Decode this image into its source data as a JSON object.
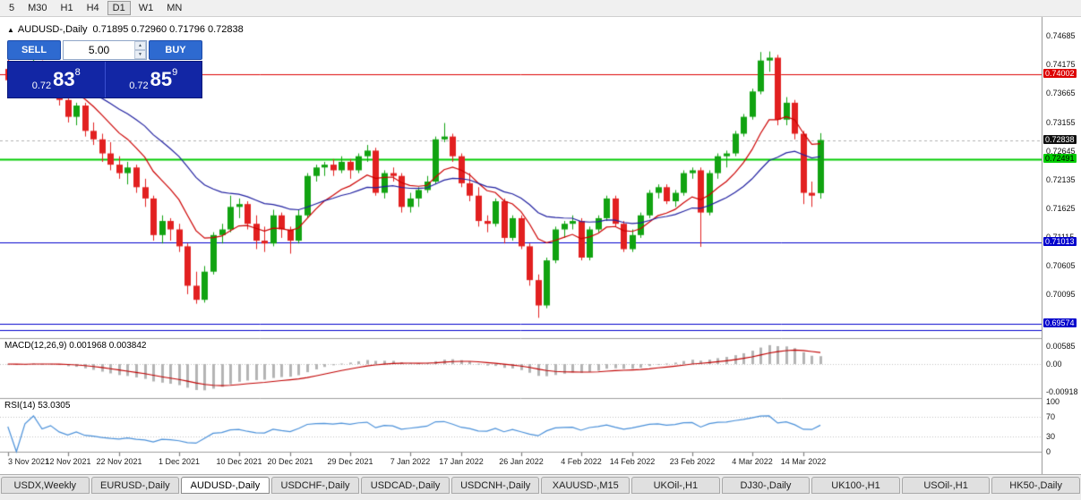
{
  "toolbar": {
    "timeframes": [
      {
        "label": "5",
        "active": false
      },
      {
        "label": "M30",
        "active": false
      },
      {
        "label": "H1",
        "active": false
      },
      {
        "label": "H4",
        "active": false
      },
      {
        "label": "D1",
        "active": true
      },
      {
        "label": "W1",
        "active": false
      },
      {
        "label": "MN",
        "active": false
      }
    ]
  },
  "chart_header": {
    "collapse_icon": "▲",
    "symbol": "AUDUSD-,Daily",
    "ohlc": "0.71895 0.72960 0.71796 0.72838"
  },
  "trade": {
    "sell_label": "SELL",
    "buy_label": "BUY",
    "volume": "5.00",
    "up_arrow": "▲",
    "down_arrow": "▼",
    "sell_price": {
      "prefix": "0.72",
      "big": "83",
      "sup": "8",
      "value": "0.72838"
    },
    "buy_price": {
      "prefix": "0.72",
      "big": "85",
      "sup": "9",
      "value": "0.72859"
    }
  },
  "chart_data": [
    {
      "name": "main",
      "type": "candlestick",
      "symbol": "AUDUSD-,Daily",
      "ohlc_display": {
        "open": "0.71895",
        "high": "0.72960",
        "low": "0.71796",
        "close": "0.72838"
      },
      "colors": {
        "up": "#11a311",
        "down": "#e22020"
      },
      "y_axis": {
        "visible_range": [
          0.6932,
          0.7488
        ],
        "ticks": [
          "0.74685",
          "0.74175",
          "0.73665",
          "0.73155",
          "0.72645",
          "0.72135",
          "0.71625",
          "0.71115",
          "0.70605",
          "0.70095"
        ]
      },
      "current_price": {
        "value": 0.72838,
        "label": "0.72838"
      },
      "horizontal_lines": [
        {
          "price": 0.74002,
          "color": "#dd0000",
          "label": "0.74002",
          "label_text_color": "#fff",
          "width": 1
        },
        {
          "price": 0.72491,
          "color": "#00cc00",
          "label": "0.72491",
          "label_text_color": "#000",
          "width": 2
        },
        {
          "price": 0.71013,
          "color": "#0000cc",
          "label": "0.71013",
          "label_text_color": "#fff",
          "width": 1
        },
        {
          "price": 0.69574,
          "color": "#0000cc",
          "label": "0.69574",
          "label_text_color": "#fff",
          "width": 1
        },
        {
          "price": 0.6946,
          "color": "#0000cc",
          "label": null,
          "width": 1
        }
      ],
      "moving_averages": [
        {
          "type": "ema",
          "period": 10,
          "color": "#cc0000"
        },
        {
          "type": "ema",
          "period": 24,
          "color": "#2020a0"
        }
      ],
      "x_axis_labels": [
        {
          "text": "3 Nov 2021",
          "candle_index": 0
        },
        {
          "text": "12 Nov 2021",
          "candle_index": 7
        },
        {
          "text": "22 Nov 2021",
          "candle_index": 13
        },
        {
          "text": "1 Dec 2021",
          "candle_index": 20
        },
        {
          "text": "10 Dec 2021",
          "candle_index": 27
        },
        {
          "text": "20 Dec 2021",
          "candle_index": 33
        },
        {
          "text": "29 Dec 2021",
          "candle_index": 40
        },
        {
          "text": "7 Jan 2022",
          "candle_index": 47
        },
        {
          "text": "17 Jan 2022",
          "candle_index": 53
        },
        {
          "text": "26 Jan 2022",
          "candle_index": 60
        },
        {
          "text": "4 Feb 2022",
          "candle_index": 67
        },
        {
          "text": "14 Feb 2022",
          "candle_index": 73
        },
        {
          "text": "23 Feb 2022",
          "candle_index": 80
        },
        {
          "text": "4 Mar 2022",
          "candle_index": 87
        },
        {
          "text": "14 Mar 2022",
          "candle_index": 93
        }
      ],
      "dates": [
        "3 Nov 2021",
        "4 Nov 2021",
        "5 Nov 2021",
        "8 Nov 2021",
        "9 Nov 2021",
        "10 Nov 2021",
        "11 Nov 2021",
        "12 Nov 2021",
        "15 Nov 2021",
        "16 Nov 2021",
        "17 Nov 2021",
        "18 Nov 2021",
        "19 Nov 2021",
        "22 Nov 2021",
        "23 Nov 2021",
        "24 Nov 2021",
        "25 Nov 2021",
        "26 Nov 2021",
        "29 Nov 2021",
        "30 Nov 2021",
        "1 Dec 2021",
        "2 Dec 2021",
        "3 Dec 2021",
        "6 Dec 2021",
        "7 Dec 2021",
        "8 Dec 2021",
        "9 Dec 2021",
        "10 Dec 2021",
        "13 Dec 2021",
        "14 Dec 2021",
        "15 Dec 2021",
        "16 Dec 2021",
        "17 Dec 2021",
        "20 Dec 2021",
        "21 Dec 2021",
        "22 Dec 2021",
        "23 Dec 2021",
        "24 Dec 2021",
        "27 Dec 2021",
        "28 Dec 2021",
        "29 Dec 2021",
        "30 Dec 2021",
        "31 Dec 2021",
        "3 Jan 2022",
        "4 Jan 2022",
        "5 Jan 2022",
        "6 Jan 2022",
        "7 Jan 2022",
        "10 Jan 2022",
        "11 Jan 2022",
        "12 Jan 2022",
        "13 Jan 2022",
        "14 Jan 2022",
        "17 Jan 2022",
        "18 Jan 2022",
        "19 Jan 2022",
        "20 Jan 2022",
        "21 Jan 2022",
        "24 Jan 2022",
        "25 Jan 2022",
        "26 Jan 2022",
        "27 Jan 2022",
        "28 Jan 2022",
        "31 Jan 2022",
        "1 Feb 2022",
        "2 Feb 2022",
        "3 Feb 2022",
        "4 Feb 2022",
        "7 Feb 2022",
        "8 Feb 2022",
        "9 Feb 2022",
        "10 Feb 2022",
        "11 Feb 2022",
        "14 Feb 2022",
        "15 Feb 2022",
        "16 Feb 2022",
        "17 Feb 2022",
        "18 Feb 2022",
        "21 Feb 2022",
        "22 Feb 2022",
        "23 Feb 2022",
        "24 Feb 2022",
        "25 Feb 2022",
        "28 Feb 2022",
        "1 Mar 2022",
        "2 Mar 2022",
        "3 Mar 2022",
        "4 Mar 2022",
        "7 Mar 2022",
        "8 Mar 2022",
        "9 Mar 2022",
        "10 Mar 2022",
        "11 Mar 2022",
        "14 Mar 2022",
        "15 Mar 2022",
        "16 Mar 2022"
      ],
      "candles": [
        [
          0.741,
          0.743,
          0.738,
          0.739
        ],
        [
          0.739,
          0.7405,
          0.736,
          0.737
        ],
        [
          0.737,
          0.74,
          0.7365,
          0.7395
        ],
        [
          0.7395,
          0.7428,
          0.7385,
          0.742
        ],
        [
          0.742,
          0.7425,
          0.737,
          0.738
        ],
        [
          0.738,
          0.74,
          0.736,
          0.7395
        ],
        [
          0.7395,
          0.74,
          0.7345,
          0.7355
        ],
        [
          0.7355,
          0.7365,
          0.7315,
          0.7325
        ],
        [
          0.7325,
          0.735,
          0.731,
          0.7345
        ],
        [
          0.7345,
          0.735,
          0.729,
          0.73
        ],
        [
          0.73,
          0.7315,
          0.7275,
          0.7285
        ],
        [
          0.7285,
          0.7295,
          0.7245,
          0.726
        ],
        [
          0.726,
          0.728,
          0.723,
          0.724
        ],
        [
          0.724,
          0.7255,
          0.7215,
          0.7225
        ],
        [
          0.7225,
          0.7245,
          0.7205,
          0.7235
        ],
        [
          0.7235,
          0.724,
          0.719,
          0.72
        ],
        [
          0.72,
          0.7215,
          0.7165,
          0.718
        ],
        [
          0.718,
          0.7185,
          0.7105,
          0.7115
        ],
        [
          0.7115,
          0.715,
          0.71,
          0.714
        ],
        [
          0.714,
          0.7145,
          0.7105,
          0.7125
        ],
        [
          0.7125,
          0.7135,
          0.7085,
          0.7095
        ],
        [
          0.7095,
          0.71,
          0.701,
          0.7025
        ],
        [
          0.7025,
          0.705,
          0.6993,
          0.7
        ],
        [
          0.7,
          0.706,
          0.6995,
          0.705
        ],
        [
          0.705,
          0.712,
          0.7045,
          0.7115
        ],
        [
          0.7115,
          0.7135,
          0.71,
          0.7125
        ],
        [
          0.7125,
          0.7185,
          0.712,
          0.7165
        ],
        [
          0.7165,
          0.718,
          0.7145,
          0.717
        ],
        [
          0.717,
          0.7175,
          0.7125,
          0.7135
        ],
        [
          0.7135,
          0.715,
          0.709,
          0.7105
        ],
        [
          0.7105,
          0.713,
          0.7085,
          0.71
        ],
        [
          0.71,
          0.716,
          0.7095,
          0.715
        ],
        [
          0.715,
          0.7155,
          0.711,
          0.7125
        ],
        [
          0.7125,
          0.713,
          0.7082,
          0.7105
        ],
        [
          0.7105,
          0.716,
          0.71,
          0.715
        ],
        [
          0.715,
          0.7225,
          0.7145,
          0.722
        ],
        [
          0.722,
          0.724,
          0.721,
          0.7235
        ],
        [
          0.7235,
          0.7245,
          0.722,
          0.724
        ],
        [
          0.724,
          0.725,
          0.722,
          0.723
        ],
        [
          0.723,
          0.7255,
          0.7225,
          0.7245
        ],
        [
          0.7245,
          0.725,
          0.7215,
          0.723
        ],
        [
          0.723,
          0.726,
          0.7225,
          0.7255
        ],
        [
          0.7255,
          0.7275,
          0.7245,
          0.7265
        ],
        [
          0.7265,
          0.727,
          0.7185,
          0.719
        ],
        [
          0.719,
          0.723,
          0.718,
          0.7225
        ],
        [
          0.7225,
          0.7235,
          0.721,
          0.722
        ],
        [
          0.722,
          0.7225,
          0.7155,
          0.7165
        ],
        [
          0.7165,
          0.719,
          0.7155,
          0.718
        ],
        [
          0.718,
          0.72,
          0.7165,
          0.7195
        ],
        [
          0.7195,
          0.722,
          0.719,
          0.721
        ],
        [
          0.721,
          0.729,
          0.7205,
          0.7285
        ],
        [
          0.7285,
          0.7314,
          0.728,
          0.729
        ],
        [
          0.729,
          0.7295,
          0.7245,
          0.7255
        ],
        [
          0.7255,
          0.726,
          0.72,
          0.7207
        ],
        [
          0.7207,
          0.7225,
          0.7175,
          0.7185
        ],
        [
          0.7185,
          0.72,
          0.713,
          0.714
        ],
        [
          0.714,
          0.715,
          0.712,
          0.7135
        ],
        [
          0.7135,
          0.718,
          0.713,
          0.7175
        ],
        [
          0.7175,
          0.718,
          0.71,
          0.711
        ],
        [
          0.711,
          0.715,
          0.7105,
          0.7145
        ],
        [
          0.7145,
          0.715,
          0.709,
          0.7095
        ],
        [
          0.7095,
          0.71,
          0.7025,
          0.7035
        ],
        [
          0.7035,
          0.7045,
          0.6968,
          0.699
        ],
        [
          0.699,
          0.7075,
          0.6985,
          0.707
        ],
        [
          0.707,
          0.713,
          0.7065,
          0.7125
        ],
        [
          0.7125,
          0.714,
          0.711,
          0.7135
        ],
        [
          0.7135,
          0.715,
          0.7125,
          0.714
        ],
        [
          0.714,
          0.7145,
          0.707,
          0.7075
        ],
        [
          0.7075,
          0.713,
          0.707,
          0.7125
        ],
        [
          0.7125,
          0.715,
          0.712,
          0.7145
        ],
        [
          0.7145,
          0.7185,
          0.714,
          0.718
        ],
        [
          0.718,
          0.7185,
          0.713,
          0.7135
        ],
        [
          0.7135,
          0.714,
          0.7085,
          0.709
        ],
        [
          0.709,
          0.7125,
          0.7085,
          0.7115
        ],
        [
          0.7115,
          0.7155,
          0.711,
          0.715
        ],
        [
          0.715,
          0.7195,
          0.7145,
          0.719
        ],
        [
          0.719,
          0.7205,
          0.718,
          0.72
        ],
        [
          0.72,
          0.7205,
          0.717,
          0.7175
        ],
        [
          0.7175,
          0.7195,
          0.7165,
          0.719
        ],
        [
          0.719,
          0.723,
          0.7185,
          0.7225
        ],
        [
          0.7225,
          0.7235,
          0.7215,
          0.723
        ],
        [
          0.723,
          0.7235,
          0.7094,
          0.7155
        ],
        [
          0.7155,
          0.723,
          0.715,
          0.7225
        ],
        [
          0.7225,
          0.726,
          0.7215,
          0.7255
        ],
        [
          0.7255,
          0.7265,
          0.7235,
          0.726
        ],
        [
          0.726,
          0.73,
          0.7255,
          0.7295
        ],
        [
          0.7295,
          0.733,
          0.729,
          0.7325
        ],
        [
          0.7325,
          0.7375,
          0.732,
          0.737
        ],
        [
          0.737,
          0.744,
          0.7365,
          0.7425
        ],
        [
          0.7425,
          0.7441,
          0.7405,
          0.743
        ],
        [
          0.743,
          0.7435,
          0.731,
          0.732
        ],
        [
          0.732,
          0.736,
          0.731,
          0.735
        ],
        [
          0.735,
          0.7355,
          0.7285,
          0.7295
        ],
        [
          0.7295,
          0.73,
          0.717,
          0.719
        ],
        [
          0.719,
          0.721,
          0.7165,
          0.7185
        ],
        [
          0.71895,
          0.7296,
          0.71796,
          0.72838
        ]
      ]
    },
    {
      "name": "macd",
      "type": "bar",
      "header": "MACD(12,26,9) 0.001968 0.003842",
      "params": [
        12,
        26,
        9
      ],
      "values_display": [
        "0.001968",
        "0.003842"
      ],
      "y_ticks": [
        "0.00585",
        "0.00",
        "-0.00918"
      ],
      "y_range": [
        -0.0105,
        0.0079
      ],
      "derived_from": "main.candles",
      "histogram_color": "#b4b4b4",
      "signal_color": "#c00000"
    },
    {
      "name": "rsi",
      "type": "line",
      "header": "RSI(14) 53.0305",
      "period": 14,
      "current": "53.0305",
      "y_ticks": [
        "100",
        "70",
        "30",
        "0"
      ],
      "levels": [
        70,
        30
      ],
      "derived_from": "main.candles",
      "line_color": "#4a90d9"
    }
  ],
  "tabs": [
    {
      "label": "USDX,Weekly",
      "active": false
    },
    {
      "label": "EURUSD-,Daily",
      "active": false
    },
    {
      "label": "AUDUSD-,Daily",
      "active": true
    },
    {
      "label": "USDCHF-,Daily",
      "active": false
    },
    {
      "label": "USDCAD-,Daily",
      "active": false
    },
    {
      "label": "USDCNH-,Daily",
      "active": false
    },
    {
      "label": "XAUUSD-,M15",
      "active": false
    },
    {
      "label": "UKOil-,H1",
      "active": false
    },
    {
      "label": "DJ30-,Daily",
      "active": false
    },
    {
      "label": "UK100-,H1",
      "active": false
    },
    {
      "label": "USOil-,H1",
      "active": false
    },
    {
      "label": "HK50-,Daily",
      "active": false
    }
  ]
}
